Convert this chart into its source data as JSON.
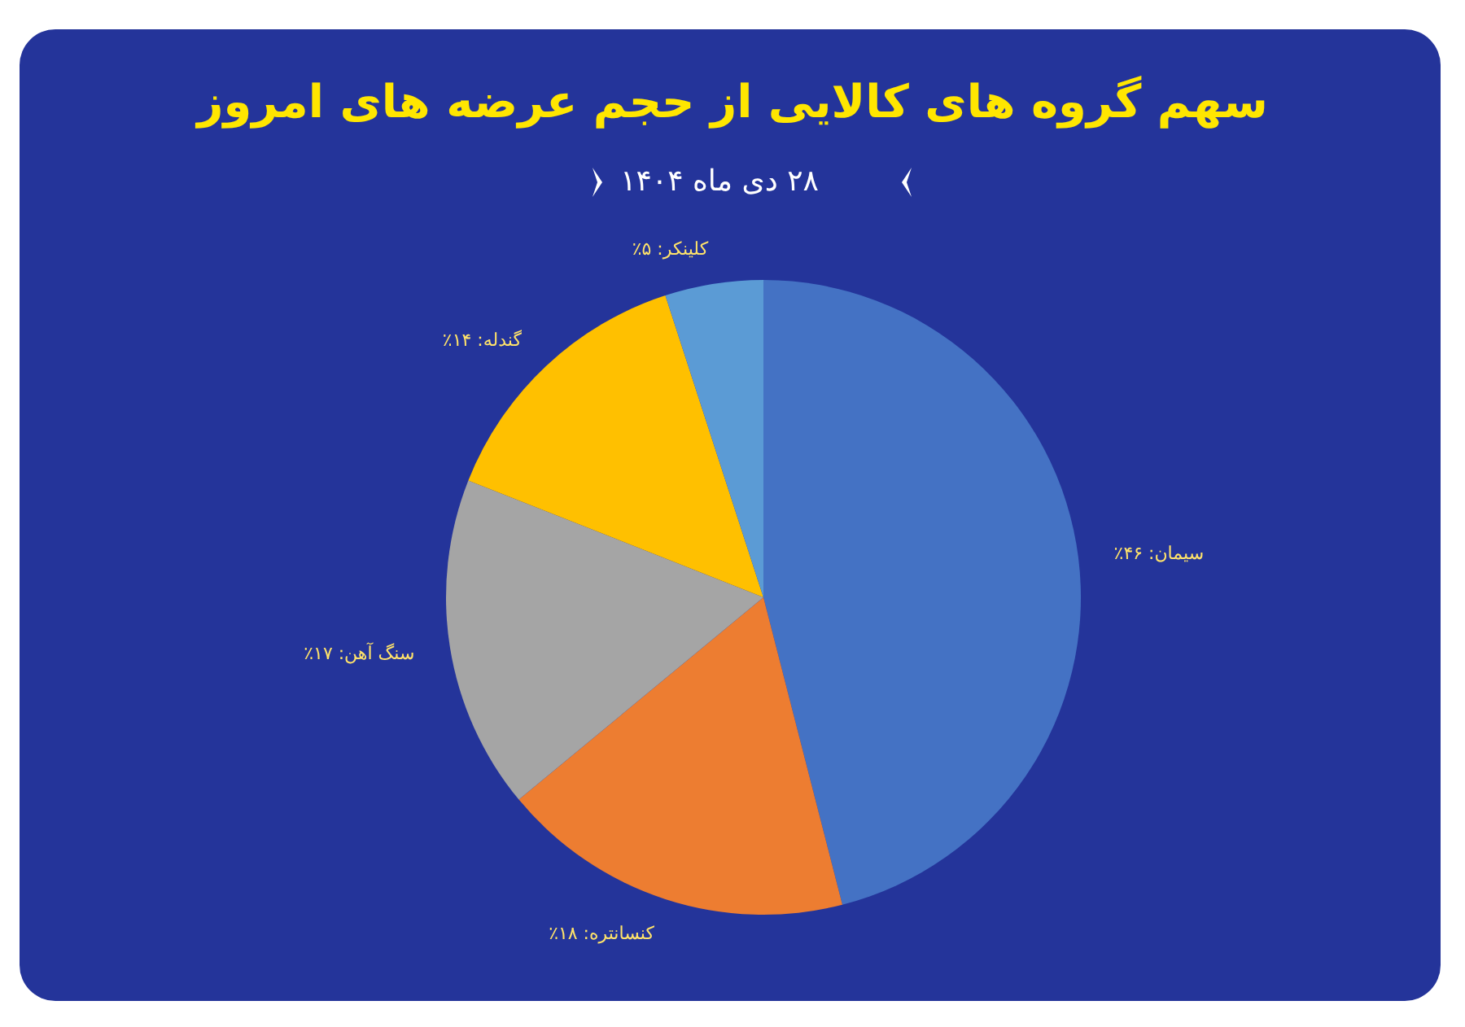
{
  "chart_data": {
    "type": "pie",
    "title": "سهم گروه های کالایی از حجم عرضه های امروز",
    "subtitle": "۲۸ دی ماه ۱۴۰۴",
    "categories": [
      "سیمان",
      "کنسانتره",
      "سنگ آهن",
      "گندله",
      "کلینکر"
    ],
    "values": [
      46,
      18,
      17,
      14,
      5
    ],
    "value_labels": [
      "۴۶٪",
      "۱۸٪",
      "۱۷٪",
      "۱۴٪",
      "۵٪"
    ],
    "colors": [
      "#4472c4",
      "#ed7d31",
      "#a5a5a5",
      "#ffc000",
      "#5b9bd5"
    ]
  }
}
